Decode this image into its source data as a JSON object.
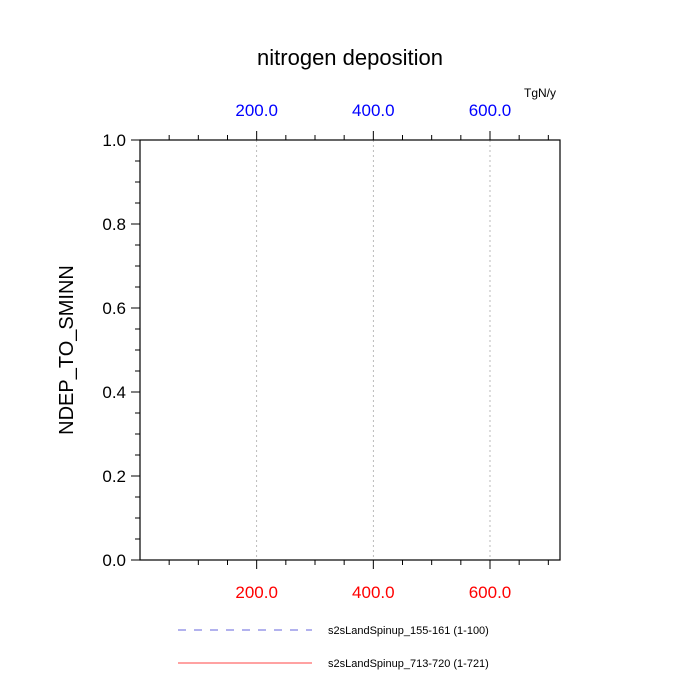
{
  "chart_data": {
    "type": "line",
    "title": "nitrogen deposition",
    "ylabel": "NDEP_TO_SMINN",
    "xlabel": "",
    "units": "TgN/y",
    "xlim": [
      0,
      720
    ],
    "ylim": [
      0.0,
      1.0
    ],
    "x_ticks": [
      200,
      400,
      600
    ],
    "x_tick_labels": [
      "200.0",
      "400.0",
      "600.0"
    ],
    "y_ticks": [
      0.0,
      0.2,
      0.4,
      0.6,
      0.8,
      1.0
    ],
    "y_tick_labels": [
      "0.0",
      "0.2",
      "0.4",
      "0.6",
      "0.8",
      "1.0"
    ],
    "grid": "vertical dotted",
    "legend_position": "bottom",
    "colors": {
      "bottom_axis_labels": "#ff0000",
      "top_axis_labels": "#0000ff"
    },
    "series": [
      {
        "name": "s2sLandSpinup_155-161 (1-100)",
        "color": "#6666dd",
        "dash": "dashed",
        "x": [
          1,
          100
        ],
        "values": [
          0.0,
          0.0
        ]
      },
      {
        "name": "s2sLandSpinup_713-720 (1-721)",
        "color": "#ff4444",
        "dash": "solid",
        "x": [
          1,
          721
        ],
        "values": [
          0.0,
          0.0
        ]
      }
    ]
  }
}
